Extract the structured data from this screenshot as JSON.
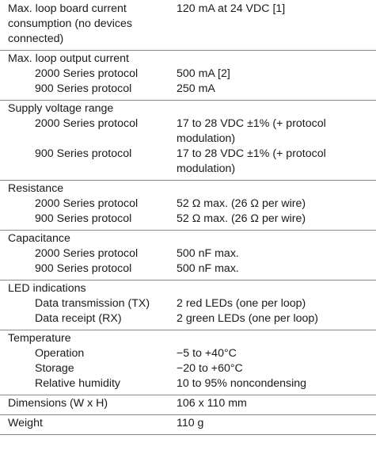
{
  "rows": [
    {
      "lines": [
        {
          "label": "Max. loop board current consumption (no devices connected)",
          "value": "120 mA at 24 VDC [1]",
          "sub": false
        }
      ]
    },
    {
      "lines": [
        {
          "label": "Max. loop output current",
          "value": "",
          "sub": false
        },
        {
          "label": "2000 Series protocol",
          "value": "500 mA [2]",
          "sub": true
        },
        {
          "label": "900 Series protocol",
          "value": "250 mA",
          "sub": true
        }
      ]
    },
    {
      "lines": [
        {
          "label": "Supply voltage range",
          "value": "",
          "sub": false
        },
        {
          "label": "2000 Series protocol",
          "value": "17 to 28 VDC ±1% (+ protocol modulation)",
          "sub": true
        },
        {
          "label": "900 Series protocol",
          "value": "17 to 28 VDC ±1% (+ protocol modulation)",
          "sub": true
        }
      ]
    },
    {
      "lines": [
        {
          "label": "Resistance",
          "value": "",
          "sub": false
        },
        {
          "label": "2000 Series protocol",
          "value": "52 Ω max. (26 Ω per wire)",
          "sub": true
        },
        {
          "label": "900 Series protocol",
          "value": "52 Ω max. (26 Ω per wire)",
          "sub": true
        }
      ]
    },
    {
      "lines": [
        {
          "label": "Capacitance",
          "value": "",
          "sub": false
        },
        {
          "label": "2000 Series protocol",
          "value": "500 nF max.",
          "sub": true
        },
        {
          "label": "900 Series protocol",
          "value": "500 nF max.",
          "sub": true
        }
      ]
    },
    {
      "lines": [
        {
          "label": "LED indications",
          "value": "",
          "sub": false
        },
        {
          "label": "Data transmission (TX)",
          "value": "2 red LEDs (one per loop)",
          "sub": true
        },
        {
          "label": "Data receipt (RX)",
          "value": "2 green LEDs (one per loop)",
          "sub": true
        }
      ]
    },
    {
      "lines": [
        {
          "label": "Temperature",
          "value": "",
          "sub": false
        },
        {
          "label": "Operation",
          "value": "−5 to +40°C",
          "sub": true
        },
        {
          "label": "Storage",
          "value": "−20 to +60°C",
          "sub": true
        },
        {
          "label": "Relative humidity",
          "value": "10 to 95% noncondensing",
          "sub": true
        }
      ]
    },
    {
      "lines": [
        {
          "label": "Dimensions (W x H)",
          "value": "106 x 110 mm",
          "sub": false
        }
      ]
    },
    {
      "lines": [
        {
          "label": "Weight",
          "value": "110 g",
          "sub": false
        }
      ]
    }
  ]
}
